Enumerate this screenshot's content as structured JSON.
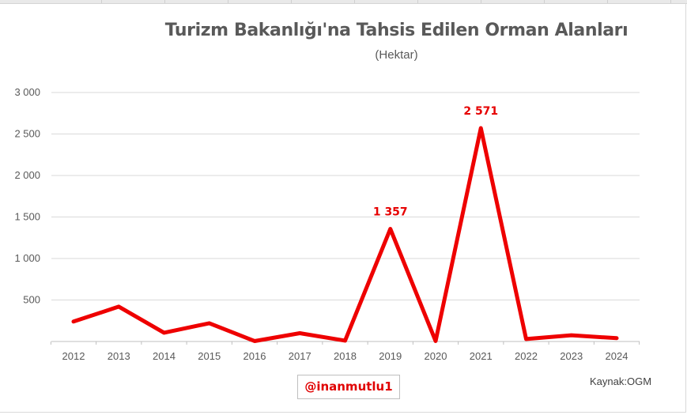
{
  "chart_data": {
    "type": "line",
    "title": "Turizm Bakanlığı'na Tahsis Edilen Orman Alanları",
    "subtitle": "(Hektar)",
    "categories": [
      "2012",
      "2013",
      "2014",
      "2015",
      "2016",
      "2017",
      "2018",
      "2019",
      "2020",
      "2021",
      "2022",
      "2023",
      "2024"
    ],
    "series": [
      {
        "values": [
          240,
          420,
          105,
          220,
          5,
          100,
          10,
          1357,
          5,
          2571,
          30,
          75,
          40
        ],
        "color": "#ee0000"
      }
    ],
    "ylim": [
      0,
      3000
    ],
    "yticks": [
      500,
      1000,
      1500,
      2000,
      2500,
      3000
    ],
    "ytick_labels": [
      "500",
      "1 000",
      "1 500",
      "2 000",
      "2 500",
      "3 000"
    ],
    "data_labels": [
      {
        "index": 7,
        "text": "1 357"
      },
      {
        "index": 9,
        "text": "2 571"
      }
    ],
    "grid": true,
    "xlabel": "",
    "ylabel": ""
  },
  "watermark": "@inanmutlu1",
  "source": "Kaynak:OGM"
}
